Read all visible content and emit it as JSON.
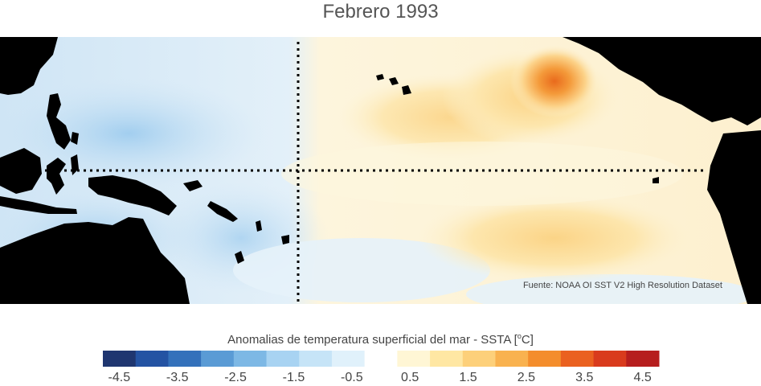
{
  "title": "Febrero 1993",
  "credit": "Fuente: NOAA OI SST V2 High Resolution Dataset",
  "colorbar": {
    "label": "Anomalias de temperatura superficial del mar - SSTA  [",
    "unit": "C",
    "label_end": "]",
    "colors": [
      "#1f3670",
      "#2453a3",
      "#3471bb",
      "#5a9bd5",
      "#7db8e5",
      "#a8d3f2",
      "#c6e4f7",
      "#e0f1fb",
      "#ffffff",
      "#fff6d5",
      "#ffe7a3",
      "#fdd07a",
      "#f9b24f",
      "#f48d2c",
      "#ea6120",
      "#d93b1d",
      "#b61e1e"
    ],
    "ticks": [
      "-4.5",
      "-3.5",
      "-2.5",
      "-1.5",
      "-0.5",
      "0.5",
      "1.5",
      "2.5",
      "3.5",
      "4.5"
    ]
  },
  "colors": {
    "land": "#000000",
    "cool_field": "#cfe5f5",
    "warm_field": "#fdf2d0",
    "hot_spot": "#ef8a2a"
  }
}
